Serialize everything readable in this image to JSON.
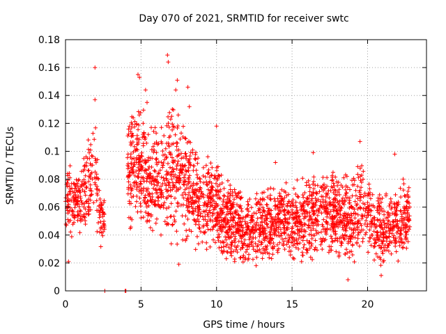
{
  "chart_data": {
    "type": "scatter",
    "title": "Day 070 of 2021, SRMTID for receiver swtc",
    "xlabel": "GPS time / hours",
    "ylabel": "SRMTID / TECUs",
    "xlim": [
      0,
      23.9
    ],
    "ylim": [
      0,
      0.18
    ],
    "xticks": [
      0,
      5,
      10,
      15,
      20
    ],
    "xtick_labels": [
      "0",
      "5",
      "10",
      "15",
      "20"
    ],
    "yticks": [
      0,
      0.02,
      0.04,
      0.06,
      0.08,
      0.1,
      0.12,
      0.14,
      0.16,
      0.18
    ],
    "ytick_labels": [
      "0",
      "0.02",
      "0.04",
      "0.06",
      "0.08",
      "0.1",
      "0.12",
      "0.14",
      "0.16",
      "0.18"
    ],
    "grid": true,
    "marker": "+",
    "marker_color": "#ff0000",
    "series": [
      {
        "name": "SRMTID",
        "segments": [
          {
            "x_start": 0.0,
            "x_end": 2.6,
            "envelope": [
              [
                0.0,
                0.03,
                0.1
              ],
              [
                0.5,
                0.035,
                0.09
              ],
              [
                1.0,
                0.04,
                0.095
              ],
              [
                1.5,
                0.045,
                0.12
              ],
              [
                2.0,
                0.04,
                0.13
              ],
              [
                2.3,
                0.03,
                0.08
              ],
              [
                2.6,
                0.025,
                0.07
              ]
            ],
            "count": 260
          },
          {
            "x_start": 4.1,
            "x_end": 10.8,
            "envelope": [
              [
                4.1,
                0.04,
                0.12
              ],
              [
                4.8,
                0.05,
                0.15
              ],
              [
                5.5,
                0.035,
                0.12
              ],
              [
                6.5,
                0.04,
                0.12
              ],
              [
                7.0,
                0.03,
                0.14
              ],
              [
                8.0,
                0.03,
                0.12
              ],
              [
                9.0,
                0.025,
                0.1
              ],
              [
                10.0,
                0.025,
                0.095
              ],
              [
                10.8,
                0.02,
                0.08
              ]
            ],
            "count": 900
          },
          {
            "x_start": 10.8,
            "x_end": 17.0,
            "envelope": [
              [
                10.8,
                0.02,
                0.08
              ],
              [
                12.0,
                0.015,
                0.07
              ],
              [
                13.0,
                0.015,
                0.075
              ],
              [
                14.0,
                0.02,
                0.08
              ],
              [
                15.0,
                0.02,
                0.08
              ],
              [
                16.0,
                0.02,
                0.085
              ],
              [
                17.0,
                0.025,
                0.09
              ]
            ],
            "count": 780
          },
          {
            "x_start": 17.0,
            "x_end": 22.8,
            "envelope": [
              [
                17.0,
                0.025,
                0.09
              ],
              [
                18.0,
                0.02,
                0.085
              ],
              [
                19.0,
                0.015,
                0.09
              ],
              [
                19.6,
                0.03,
                0.1
              ],
              [
                20.5,
                0.02,
                0.075
              ],
              [
                21.0,
                0.015,
                0.07
              ],
              [
                22.0,
                0.02,
                0.08
              ],
              [
                22.8,
                0.03,
                0.085
              ]
            ],
            "count": 700
          }
        ],
        "outliers": [
          [
            1.95,
            0.16
          ],
          [
            1.95,
            0.137
          ],
          [
            6.75,
            0.169
          ],
          [
            6.8,
            0.164
          ],
          [
            7.4,
            0.151
          ],
          [
            7.3,
            0.144
          ],
          [
            5.3,
            0.144
          ],
          [
            5.4,
            0.135
          ],
          [
            4.8,
            0.155
          ],
          [
            4.9,
            0.153
          ],
          [
            8.1,
            0.146
          ],
          [
            8.2,
            0.132
          ],
          [
            10.0,
            0.118
          ],
          [
            13.9,
            0.092
          ],
          [
            16.4,
            0.099
          ],
          [
            19.5,
            0.107
          ],
          [
            21.8,
            0.098
          ],
          [
            18.7,
            0.008
          ],
          [
            20.9,
            0.011
          ],
          [
            0.2,
            0.021
          ],
          [
            7.5,
            0.019
          ],
          [
            2.6,
            0.0
          ],
          [
            3.95,
            0.0
          ],
          [
            4.0,
            0.0
          ]
        ]
      }
    ]
  }
}
